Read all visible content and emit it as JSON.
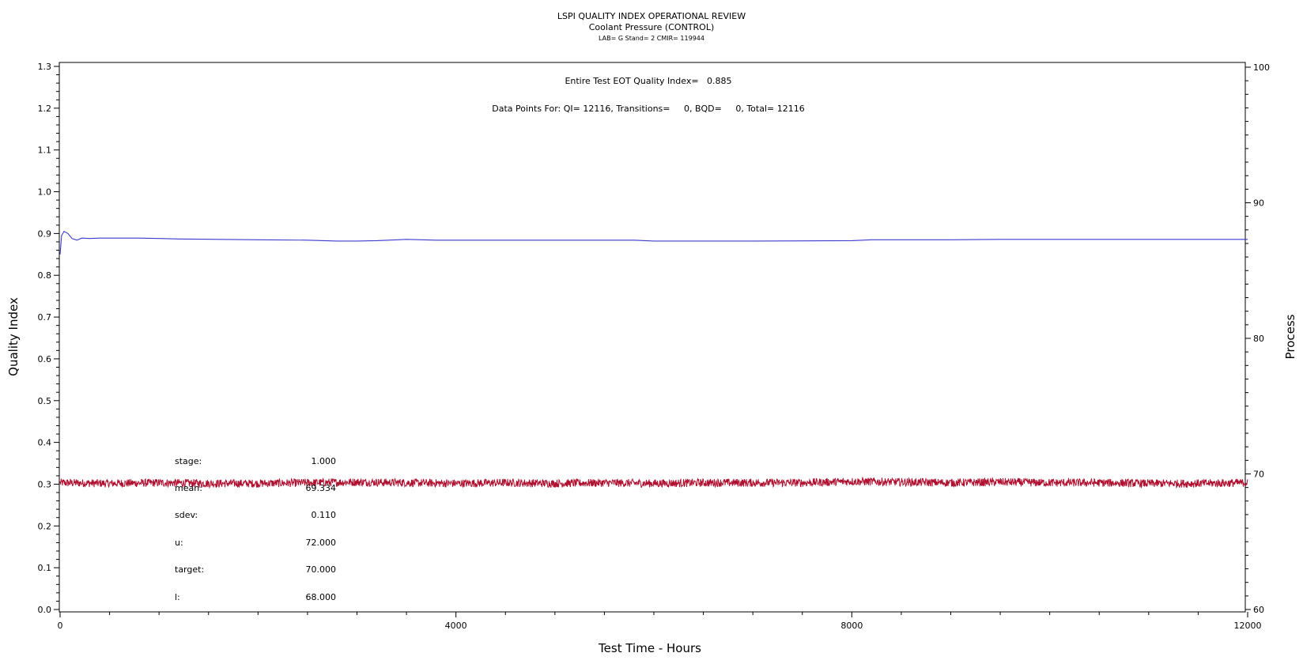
{
  "chart_data": {
    "type": "line",
    "title": "LSPI QUALITY INDEX OPERATIONAL REVIEW",
    "subtitle": "Coolant Pressure (CONTROL)",
    "subtitle2": "LAB= G Stand= 2 CMIR= 119944",
    "annotation_qi": "Entire Test EOT Quality Index=   0.885",
    "annotation_points": "Data Points For: QI= 12116, Transitions=     0, BQD=     0, Total= 12116",
    "xlabel": "Test Time - Hours",
    "ylabel_left": "Quality Index",
    "ylabel_right": "Process",
    "xlim": [
      0,
      12000
    ],
    "ylim_left": [
      0.0,
      1.3
    ],
    "ylim_right": [
      60,
      100
    ],
    "x_ticks": [
      0,
      4000,
      8000,
      12000
    ],
    "y_left_ticks": [
      "0.0",
      "0.1",
      "0.2",
      "0.3",
      "0.4",
      "0.5",
      "0.6",
      "0.7",
      "0.8",
      "0.9",
      "1.0",
      "1.1",
      "1.2",
      "1.3"
    ],
    "y_right_ticks": [
      "60",
      "70",
      "80",
      "90",
      "100"
    ],
    "stats": [
      {
        "label": "stage:",
        "value": "1.000"
      },
      {
        "label": "mean:",
        "value": "69.334"
      },
      {
        "label": "sdev:",
        "value": "0.110"
      },
      {
        "label": "u:",
        "value": "72.000"
      },
      {
        "label": "target:",
        "value": "70.000"
      },
      {
        "label": "l:",
        "value": "68.000"
      }
    ],
    "series": [
      {
        "axis": "left",
        "color": "#3a3acf",
        "x": [
          0,
          15,
          40,
          80,
          120,
          170,
          220,
          300,
          400,
          600,
          800,
          1000,
          1200,
          1600,
          2000,
          2500,
          2800,
          3000,
          3200,
          3500,
          3800,
          4000,
          5000,
          5800,
          6000,
          6200,
          7000,
          8000,
          8200,
          9000,
          9500,
          10000,
          11000,
          12000
        ],
        "y": [
          0.85,
          0.895,
          0.905,
          0.9,
          0.888,
          0.884,
          0.889,
          0.888,
          0.889,
          0.889,
          0.889,
          0.888,
          0.887,
          0.886,
          0.885,
          0.884,
          0.882,
          0.882,
          0.883,
          0.886,
          0.884,
          0.884,
          0.884,
          0.884,
          0.882,
          0.882,
          0.882,
          0.883,
          0.885,
          0.885,
          0.886,
          0.886,
          0.886,
          0.886
        ]
      },
      {
        "axis": "right",
        "color": "#b01030",
        "x": [
          0,
          500,
          1000,
          1500,
          2000,
          2500,
          3000,
          3500,
          4000,
          4500,
          5000,
          5500,
          6000,
          6500,
          7000,
          7500,
          8000,
          8500,
          9000,
          9500,
          10000,
          10500,
          11000,
          11500,
          12000
        ],
        "y": [
          69.35,
          69.3,
          69.35,
          69.3,
          69.3,
          69.35,
          69.4,
          69.35,
          69.3,
          69.35,
          69.3,
          69.35,
          69.3,
          69.35,
          69.35,
          69.35,
          69.45,
          69.4,
          69.35,
          69.4,
          69.35,
          69.35,
          69.3,
          69.3,
          69.35
        ],
        "noise_amplitude": 0.3
      }
    ]
  }
}
